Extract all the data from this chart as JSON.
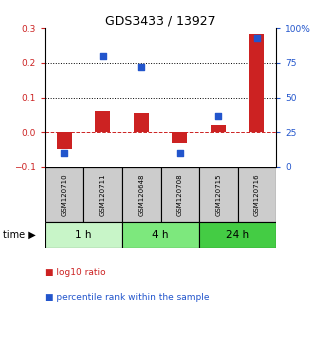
{
  "title": "GDS3433 / 13927",
  "samples": [
    "GSM120710",
    "GSM120711",
    "GSM120648",
    "GSM120708",
    "GSM120715",
    "GSM120716"
  ],
  "log10_ratio": [
    -0.05,
    0.06,
    0.055,
    -0.03,
    0.02,
    0.285
  ],
  "percentile_rank": [
    10,
    80,
    72,
    10,
    37,
    93
  ],
  "left_ylim": [
    -0.1,
    0.3
  ],
  "right_ylim": [
    0,
    100
  ],
  "left_yticks": [
    -0.1,
    0.0,
    0.1,
    0.2,
    0.3
  ],
  "right_yticks": [
    0,
    25,
    50,
    75,
    100
  ],
  "right_yticklabels": [
    "0",
    "25",
    "50",
    "75",
    "100%"
  ],
  "hlines": [
    0.1,
    0.2
  ],
  "time_groups": [
    {
      "label": "1 h",
      "start": 0,
      "end": 2,
      "color": "#c8f5c8"
    },
    {
      "label": "4 h",
      "start": 2,
      "end": 4,
      "color": "#7de87d"
    },
    {
      "label": "24 h",
      "start": 4,
      "end": 6,
      "color": "#44cc44"
    }
  ],
  "bar_color": "#cc2222",
  "square_color": "#2255cc",
  "bar_width": 0.38,
  "square_size": 18,
  "zero_line_color": "#cc2222",
  "grid_color": "#000000",
  "title_color": "#000000",
  "left_label_color": "#cc2222",
  "right_label_color": "#2255cc",
  "sample_box_color": "#cccccc",
  "legend_log10": "log10 ratio",
  "legend_percentile": "percentile rank within the sample"
}
